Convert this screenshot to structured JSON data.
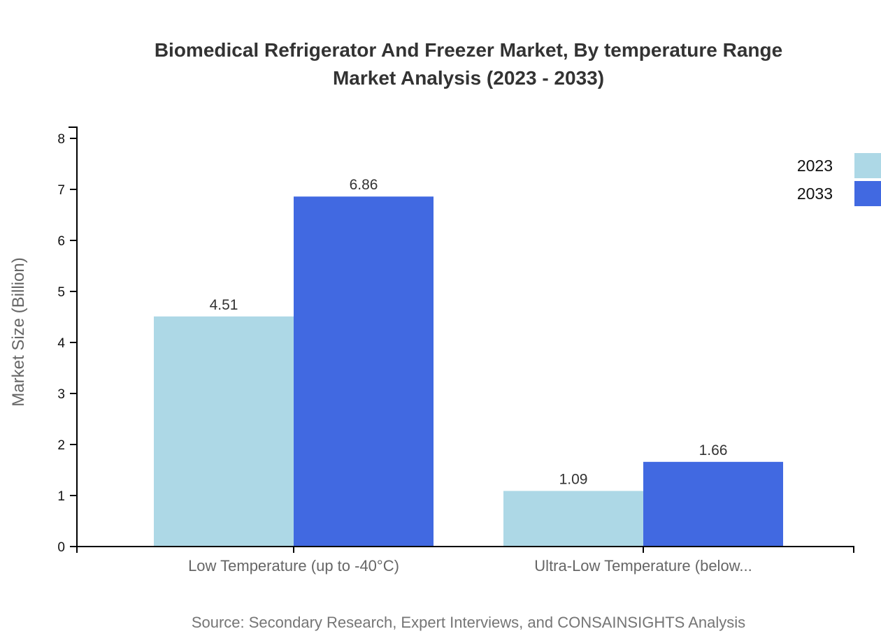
{
  "chart_data": {
    "type": "bar",
    "title": "Biomedical Refrigerator And Freezer Market, By temperature Range Market Analysis (2023 - 2033)",
    "title_lines": [
      "Biomedical Refrigerator And Freezer Market, By temperature Range",
      "Market Analysis (2023 - 2033)"
    ],
    "categories": [
      "Low Temperature (up to -40°C)",
      "Ultra-Low Temperature (below..."
    ],
    "series": [
      {
        "name": "2023",
        "color": "#ADD8E6",
        "values": [
          4.51,
          1.09
        ]
      },
      {
        "name": "2033",
        "color": "#4169E1",
        "values": [
          6.86,
          1.66
        ]
      }
    ],
    "data_labels": [
      [
        "4.51",
        "1.09"
      ],
      [
        "6.86",
        "1.66"
      ]
    ],
    "xlabel": "",
    "ylabel": "Market Size (Billion)",
    "ylim": [
      0,
      8.2
    ],
    "yticks": [
      0,
      1,
      2,
      3,
      4,
      5,
      6,
      7,
      8
    ],
    "grid": false,
    "legend_position": "top-right",
    "source": "Source: Secondary Research, Expert Interviews, and CONSAINSIGHTS Analysis"
  },
  "colors": {
    "title": "#333333",
    "axis": "#000000",
    "tick_label": "#111111",
    "category_label": "#666666",
    "axis_title": "#666666",
    "value_label": "#333333",
    "source": "#757575",
    "background": "#ffffff"
  }
}
